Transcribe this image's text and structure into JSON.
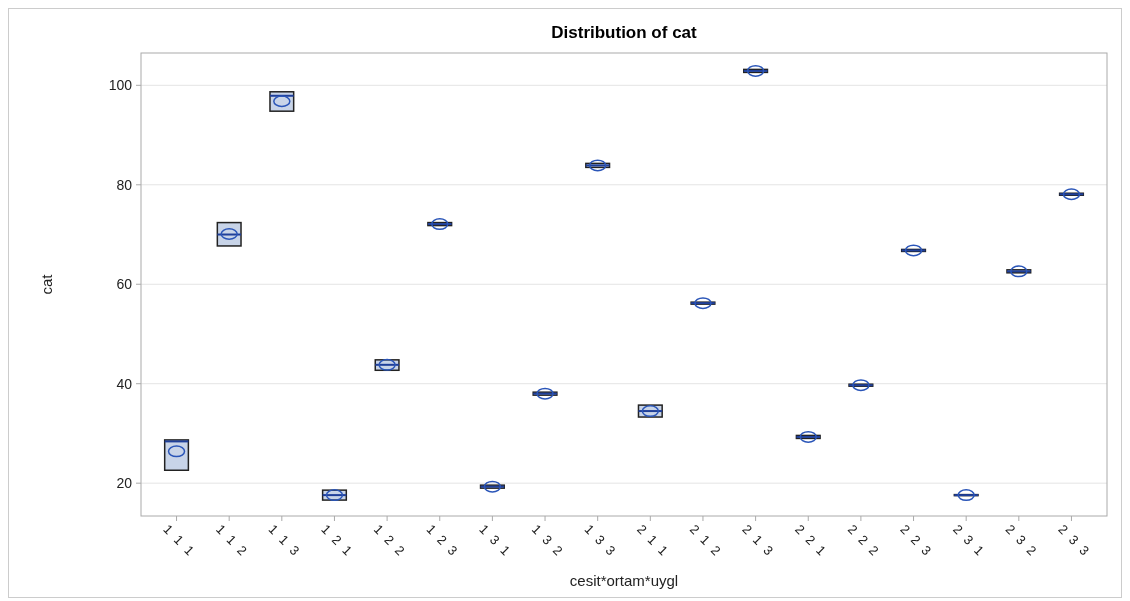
{
  "chart_data": {
    "type": "box",
    "title": "Distribution of cat",
    "xlabel": "cesit*ortam*uygl",
    "ylabel": "cat",
    "categories": [
      "1 1 1",
      "1 1 2",
      "1 1 3",
      "1 2 1",
      "1 2 2",
      "1 2 3",
      "1 3 1",
      "1 3 2",
      "1 3 3",
      "2 1 1",
      "2 1 2",
      "2 1 3",
      "2 2 1",
      "2 2 2",
      "2 2 3",
      "2 3 1",
      "2 3 2",
      "2 3 3"
    ],
    "boxes": [
      {
        "low": 22.6,
        "q1": 22.6,
        "median": 28.4,
        "q3": 28.7,
        "high": 28.7,
        "mean": 26.4
      },
      {
        "low": 67.7,
        "q1": 67.7,
        "median": 70.0,
        "q3": 72.4,
        "high": 72.4,
        "mean": 70.1
      },
      {
        "low": 94.8,
        "q1": 94.8,
        "median": 97.9,
        "q3": 98.7,
        "high": 98.7,
        "mean": 96.8
      },
      {
        "low": 16.6,
        "q1": 16.6,
        "median": 17.6,
        "q3": 18.6,
        "high": 18.6,
        "mean": 17.6
      },
      {
        "low": 42.7,
        "q1": 42.7,
        "median": 43.8,
        "q3": 44.8,
        "high": 44.8,
        "mean": 43.8
      },
      {
        "low": 71.8,
        "q1": 71.8,
        "median": 72.1,
        "q3": 72.4,
        "high": 72.4,
        "mean": 72.1
      },
      {
        "low": 19.0,
        "q1": 19.0,
        "median": 19.3,
        "q3": 19.6,
        "high": 19.6,
        "mean": 19.3
      },
      {
        "low": 37.7,
        "q1": 37.7,
        "median": 38.0,
        "q3": 38.3,
        "high": 38.3,
        "mean": 38.0
      },
      {
        "low": 83.5,
        "q1": 83.5,
        "median": 83.9,
        "q3": 84.3,
        "high": 84.3,
        "mean": 83.9
      },
      {
        "low": 33.3,
        "q1": 33.3,
        "median": 34.5,
        "q3": 35.7,
        "high": 35.7,
        "mean": 34.5
      },
      {
        "low": 56.0,
        "q1": 56.0,
        "median": 56.2,
        "q3": 56.4,
        "high": 56.4,
        "mean": 56.2
      },
      {
        "low": 102.6,
        "q1": 102.6,
        "median": 102.9,
        "q3": 103.2,
        "high": 103.2,
        "mean": 102.9
      },
      {
        "low": 29.0,
        "q1": 29.0,
        "median": 29.3,
        "q3": 29.6,
        "high": 29.6,
        "mean": 29.3
      },
      {
        "low": 39.5,
        "q1": 39.5,
        "median": 39.7,
        "q3": 39.9,
        "high": 39.9,
        "mean": 39.7
      },
      {
        "low": 66.6,
        "q1": 66.6,
        "median": 66.8,
        "q3": 67.0,
        "high": 67.0,
        "mean": 66.8
      },
      {
        "low": 17.5,
        "q1": 17.5,
        "median": 17.6,
        "q3": 17.7,
        "high": 17.7,
        "mean": 17.6
      },
      {
        "low": 62.3,
        "q1": 62.3,
        "median": 62.6,
        "q3": 62.9,
        "high": 62.9,
        "mean": 62.6
      },
      {
        "low": 77.9,
        "q1": 77.9,
        "median": 78.1,
        "q3": 78.3,
        "high": 78.3,
        "mean": 78.1
      }
    ],
    "color": "#c8d4e8",
    "ylim": [
      13.4,
      106.5
    ],
    "yticks": [
      20,
      40,
      60,
      80,
      100
    ],
    "grid": "y"
  }
}
